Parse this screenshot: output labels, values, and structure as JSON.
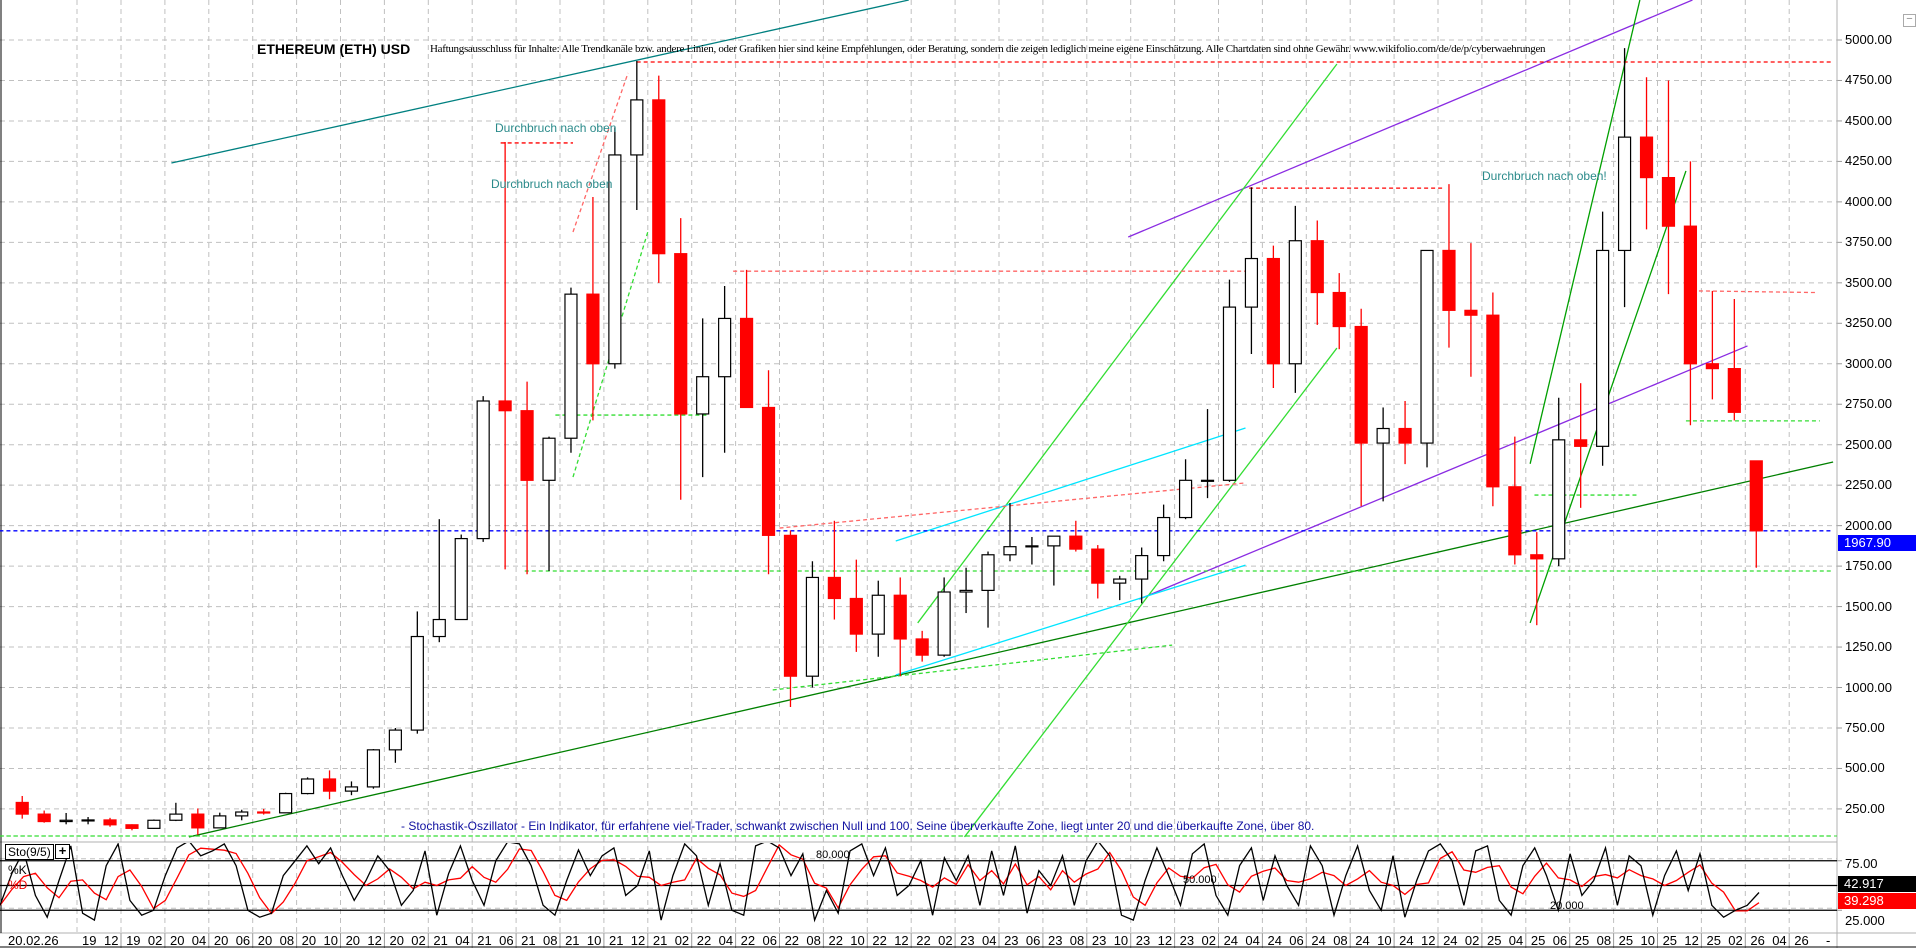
{
  "header": {
    "title": "ETHEREUM (ETH) USD",
    "disclaimer": "Haftungsausschluss für Inhalte: Alle Trendkanäle bzw. andere Linien, oder Grafiken hier sind keine Empfehlungen, oder Beratung, sondern die zeigen lediglich meine eigene Einschätzung. Alle Chartdaten sind ohne Gewähr.  www.wikifolio.com/de/de/p/cyberwaehrungen"
  },
  "annotations_text": {
    "breakout_1": "Durchbruch nach oben",
    "breakout_2": "Durchbruch nach oben",
    "breakout_3": "Durchbruch nach oben!",
    "stochastic_note": "- Stochastik-Oszillator - Ein Indikator, für erfahrene viel-Trader, schwankt zwischen Null und 100. Seine überverkaufte Zone, liegt unter 20 und die überkaufte Zone, über 80."
  },
  "colors": {
    "down_candle": "#ff0000",
    "up_candle": "#000000",
    "last_price_box": "#0000ff",
    "k_line": "#000000",
    "d_line": "#ff0000",
    "grid": "#c0c0c0"
  },
  "chart_data": [
    {
      "type": "candlestick",
      "title": "ETHEREUM (ETH) USD",
      "ylim": [
        0,
        5250
      ],
      "y_ticks": [
        "250.00",
        "500.00",
        "750.00",
        "1000.00",
        "1250.00",
        "1500.00",
        "1750.00",
        "2000.00",
        "2250.00",
        "2500.00",
        "2750.00",
        "3000.00",
        "3250.00",
        "3500.00",
        "3750.00",
        "4000.00",
        "4250.00",
        "4500.00",
        "4750.00",
        "5000.00"
      ],
      "grid": true,
      "last_price": "1967.90",
      "x_start_label": "20.02.26",
      "x_first_label": "19",
      "x_end_label": "-",
      "x_tick_labels": [
        "12 19",
        "02 20",
        "04 20",
        "06 20",
        "08 20",
        "10 20",
        "12 20",
        "02 21",
        "04 21",
        "06 21",
        "08 21",
        "10 21",
        "12 21",
        "02 22",
        "04 22",
        "06 22",
        "08 22",
        "10 22",
        "12 22",
        "02 23",
        "04 23",
        "06 23",
        "08 23",
        "10 23",
        "12 23",
        "02 24",
        "04 24",
        "06 24",
        "08 24",
        "10 24",
        "12 24",
        "02 25",
        "04 25",
        "06 25",
        "08 25",
        "10 25",
        "12 25",
        "02 26",
        "04 26"
      ],
      "ohlc_columns": [
        "month",
        "open",
        "high",
        "low",
        "close"
      ],
      "ohlc": [
        [
          "2019-07",
          290,
          330,
          190,
          218
        ],
        [
          "2019-08",
          218,
          240,
          165,
          172
        ],
        [
          "2019-09",
          172,
          225,
          155,
          180
        ],
        [
          "2019-10",
          180,
          200,
          155,
          182
        ],
        [
          "2019-11",
          182,
          195,
          140,
          152
        ],
        [
          "2019-12",
          152,
          155,
          118,
          130
        ],
        [
          "2020-01",
          130,
          185,
          127,
          180
        ],
        [
          "2020-02",
          180,
          288,
          175,
          218
        ],
        [
          "2020-03",
          218,
          253,
          90,
          133
        ],
        [
          "2020-04",
          133,
          227,
          130,
          207
        ],
        [
          "2020-05",
          207,
          245,
          180,
          231
        ],
        [
          "2020-06",
          231,
          250,
          215,
          226
        ],
        [
          "2020-07",
          226,
          350,
          225,
          345
        ],
        [
          "2020-08",
          345,
          445,
          340,
          435
        ],
        [
          "2020-09",
          435,
          488,
          310,
          360
        ],
        [
          "2020-10",
          360,
          420,
          335,
          386
        ],
        [
          "2020-11",
          386,
          620,
          375,
          615
        ],
        [
          "2020-12",
          615,
          750,
          535,
          737
        ],
        [
          "2021-01",
          737,
          1470,
          715,
          1315
        ],
        [
          "2021-02",
          1315,
          2040,
          1280,
          1420
        ],
        [
          "2021-03",
          1420,
          1945,
          1450,
          1920
        ],
        [
          "2021-04",
          1920,
          2800,
          1900,
          2770
        ],
        [
          "2021-05",
          2770,
          4370,
          1730,
          2710
        ],
        [
          "2021-06",
          2710,
          2890,
          1700,
          2280
        ],
        [
          "2021-07",
          2280,
          2550,
          1720,
          2540
        ],
        [
          "2021-08",
          2540,
          3470,
          2450,
          3430
        ],
        [
          "2021-09",
          3430,
          4030,
          2650,
          3000
        ],
        [
          "2021-10",
          3000,
          4460,
          2970,
          4290
        ],
        [
          "2021-11",
          4290,
          4870,
          3950,
          4630
        ],
        [
          "2021-12",
          4630,
          4780,
          3500,
          3680
        ],
        [
          "2022-01",
          3680,
          3900,
          2160,
          2690
        ],
        [
          "2022-02",
          2690,
          3280,
          2300,
          2920
        ],
        [
          "2022-03",
          2920,
          3480,
          2450,
          3280
        ],
        [
          "2022-04",
          3280,
          3580,
          2780,
          2730
        ],
        [
          "2022-05",
          2730,
          2960,
          1700,
          1940
        ],
        [
          "2022-06",
          1940,
          1970,
          880,
          1070
        ],
        [
          "2022-07",
          1070,
          1780,
          1000,
          1680
        ],
        [
          "2022-08",
          1680,
          2030,
          1420,
          1550
        ],
        [
          "2022-09",
          1550,
          1790,
          1220,
          1330
        ],
        [
          "2022-10",
          1330,
          1660,
          1190,
          1570
        ],
        [
          "2022-11",
          1570,
          1680,
          1070,
          1300
        ],
        [
          "2022-12",
          1300,
          1350,
          1160,
          1200
        ],
        [
          "2023-01",
          1200,
          1680,
          1190,
          1590
        ],
        [
          "2023-02",
          1590,
          1740,
          1460,
          1600
        ],
        [
          "2023-03",
          1600,
          1840,
          1370,
          1820
        ],
        [
          "2023-04",
          1820,
          2140,
          1780,
          1870
        ],
        [
          "2023-05",
          1870,
          1930,
          1760,
          1875
        ],
        [
          "2023-06",
          1875,
          1930,
          1630,
          1935
        ],
        [
          "2023-07",
          1935,
          2030,
          1840,
          1855
        ],
        [
          "2023-08",
          1855,
          1880,
          1550,
          1645
        ],
        [
          "2023-09",
          1645,
          1690,
          1540,
          1670
        ],
        [
          "2023-10",
          1670,
          1865,
          1520,
          1815
        ],
        [
          "2023-11",
          1815,
          2130,
          1780,
          2050
        ],
        [
          "2023-12",
          2050,
          2410,
          2040,
          2280
        ],
        [
          "2024-01",
          2280,
          2720,
          2170,
          2280
        ],
        [
          "2024-02",
          2280,
          3520,
          2270,
          3350
        ],
        [
          "2024-03",
          3350,
          4090,
          3060,
          3650
        ],
        [
          "2024-04",
          3650,
          3730,
          2850,
          3000
        ],
        [
          "2024-05",
          3000,
          3975,
          2820,
          3760
        ],
        [
          "2024-06",
          3760,
          3885,
          3240,
          3440
        ],
        [
          "2024-07",
          3440,
          3560,
          3090,
          3230
        ],
        [
          "2024-08",
          3230,
          3340,
          2120,
          2510
        ],
        [
          "2024-09",
          2510,
          2730,
          2150,
          2600
        ],
        [
          "2024-10",
          2600,
          2770,
          2380,
          2510
        ],
        [
          "2024-11",
          2510,
          3680,
          2360,
          3700
        ],
        [
          "2024-12",
          3700,
          4110,
          3100,
          3330
        ],
        [
          "2025-01",
          3330,
          3745,
          2920,
          3300
        ],
        [
          "2025-02",
          3300,
          3440,
          2120,
          2240
        ],
        [
          "2025-03",
          2240,
          2550,
          1760,
          1820
        ],
        [
          "2025-04",
          1820,
          1960,
          1385,
          1795
        ],
        [
          "2025-05",
          1795,
          2790,
          1750,
          2530
        ],
        [
          "2025-06",
          2530,
          2880,
          2110,
          2490
        ],
        [
          "2025-07",
          2490,
          3940,
          2370,
          3700
        ],
        [
          "2025-08",
          3700,
          4950,
          3350,
          4400
        ],
        [
          "2025-09",
          4400,
          4770,
          3830,
          4150
        ],
        [
          "2025-10",
          4150,
          4750,
          3430,
          3850
        ],
        [
          "2025-11",
          3850,
          4250,
          2620,
          3000
        ],
        [
          "2025-12",
          3000,
          3450,
          2780,
          2970
        ],
        [
          "2026-01",
          2970,
          3400,
          2650,
          2700
        ],
        [
          "2026-02",
          2400,
          2400,
          1740,
          1967.9
        ]
      ],
      "lines": [
        {
          "from": [
            "2020-02-10",
            4240
          ],
          "to": [
            "2022-11-28",
            5247
          ],
          "color": "#008080",
          "dash": false
        },
        {
          "from": [
            "2020-03-04",
            77
          ],
          "to": [
            "2026-06-01",
            2393
          ],
          "color": "#008000",
          "dash": false
        },
        {
          "from": [
            "2023-09-28",
            3783
          ],
          "to": [
            "2025-11-19",
            5247
          ],
          "color": "#8a2be2",
          "dash": false
        },
        {
          "from": [
            "2023-10-13",
            1546
          ],
          "to": [
            "2026-02-04",
            3110
          ],
          "color": "#8a2be2",
          "dash": false
        },
        {
          "from": [
            "2022-12-10",
            1399
          ],
          "to": [
            "2024-07-13",
            4852
          ],
          "color": "#33dd33",
          "dash": false
        },
        {
          "from": [
            "2023-02-14",
            77
          ],
          "to": [
            "2024-07-13",
            3097
          ],
          "color": "#33dd33",
          "dash": false
        },
        {
          "from": [
            "2025-04-07",
            2382
          ],
          "to": [
            "2025-09-07",
            5247
          ],
          "color": "#00a000",
          "dash": false
        },
        {
          "from": [
            "2025-04-07",
            1399
          ],
          "to": [
            "2025-11-10",
            4191
          ],
          "color": "#00a000",
          "dash": false
        },
        {
          "from": [
            "2022-11-10",
            1905
          ],
          "to": [
            "2024-03-08",
            2603
          ],
          "color": "#00e5ff",
          "dash": false
        },
        {
          "from": [
            "2022-11-10",
            1077
          ],
          "to": [
            "2024-03-08",
            1756
          ],
          "color": "#00e5ff",
          "dash": false
        },
        {
          "from": [
            "2021-06-13",
            1720
          ],
          "to": [
            "2026-06-01",
            1720
          ],
          "color": "#33dd33",
          "dash": true
        },
        {
          "from": [
            "2021-07-25",
            2683
          ],
          "to": [
            "2022-02-25",
            2683
          ],
          "color": "#33dd33",
          "dash": true
        },
        {
          "from": [
            "2022-05-22",
            985
          ],
          "to": [
            "2023-11-28",
            1262
          ],
          "color": "#33dd33",
          "dash": true
        },
        {
          "from": [
            "2025-04-13",
            2189
          ],
          "to": [
            "2025-09-04",
            2189
          ],
          "color": "#33dd33",
          "dash": true
        },
        {
          "from": [
            "2025-11-10",
            2647
          ],
          "to": [
            "2026-05-13",
            2647
          ],
          "color": "#33dd33",
          "dash": true
        },
        {
          "from": [
            "2021-08-19",
            2300
          ],
          "to": [
            "2021-12-01",
            3814
          ],
          "color": "#33dd33",
          "dash": true
        },
        {
          "from": [
            "2019-06-15",
            83
          ],
          "to": [
            "2026-06-01",
            83
          ],
          "color": "#33dd33",
          "dash": true
        },
        {
          "from": [
            "2021-11-16",
            4864
          ],
          "to": [
            "2026-06-01",
            4864
          ],
          "color": "#ff0000",
          "dash": true
        },
        {
          "from": [
            "2021-05-10",
            4364
          ],
          "to": [
            "2021-08-19",
            4364
          ],
          "color": "#ff0000",
          "dash": true
        },
        {
          "from": [
            "2022-03-28",
            3572
          ],
          "to": [
            "2024-03-08",
            3572
          ],
          "color": "#ff6666",
          "dash": true
        },
        {
          "from": [
            "2024-03-13",
            4085
          ],
          "to": [
            "2024-12-07",
            4085
          ],
          "color": "#ff0000",
          "dash": true
        },
        {
          "from": [
            "2025-11-28",
            3450
          ],
          "to": [
            "2026-05-07",
            3440
          ],
          "color": "#ff6666",
          "dash": true
        },
        {
          "from": [
            "2022-06-01",
            1985
          ],
          "to": [
            "2024-03-08",
            2264
          ],
          "color": "#ff6666",
          "dash": true
        },
        {
          "from": [
            "2021-08-19",
            3814
          ],
          "to": [
            "2021-11-04",
            4796
          ],
          "color": "#ff6666",
          "dash": true
        },
        {
          "from": [
            "2019-06-15",
            1967.9
          ],
          "to": [
            "2026-06-01",
            1967.9
          ],
          "color": "#0000ff",
          "dash": true
        }
      ]
    },
    {
      "type": "line",
      "indicator": "Sto(9/5)",
      "series": [
        {
          "name": "%K",
          "color": "#000000"
        },
        {
          "name": "%D",
          "color": "#ff0000"
        }
      ],
      "ylim": [
        0,
        100
      ],
      "levels": [
        {
          "value": 80,
          "label": "80.000"
        },
        {
          "value": 50,
          "label": "50.000"
        },
        {
          "value": 20,
          "label": "20.000"
        }
      ],
      "y_ticks": [
        "75.00",
        "25.000"
      ],
      "last_k": "42.917",
      "last_d": "39.298",
      "k_values": [
        30,
        62,
        85,
        40,
        18,
        55,
        90,
        22,
        15,
        70,
        92,
        35,
        20,
        25,
        60,
        88,
        95,
        80,
        85,
        92,
        70,
        25,
        18,
        22,
        60,
        75,
        90,
        72,
        88,
        60,
        35,
        55,
        80,
        65,
        30,
        45,
        85,
        20,
        62,
        90,
        55,
        30,
        75,
        94,
        92,
        70,
        30,
        20,
        55,
        86,
        60,
        80,
        88,
        40,
        50,
        85,
        15,
        60,
        92,
        80,
        30,
        72,
        25,
        20,
        90,
        95,
        88,
        60,
        82,
        15,
        45,
        22,
        85,
        92,
        60,
        88,
        40,
        50,
        75,
        20,
        78,
        55,
        80,
        30,
        85,
        40,
        90,
        22,
        65,
        50,
        80,
        30,
        75,
        95,
        80,
        20,
        15,
        55,
        88,
        60,
        30,
        82,
        92,
        40,
        20,
        70,
        88,
        35,
        80,
        50,
        30,
        90,
        70,
        20,
        60,
        90,
        45,
        25,
        80,
        18,
        55,
        85,
        92,
        75,
        30,
        85,
        90,
        35,
        20,
        70,
        88,
        60,
        25,
        82,
        40,
        55,
        88,
        30,
        80,
        70,
        20,
        60,
        85,
        45,
        82,
        30,
        18,
        25,
        30,
        42.917
      ]
    }
  ]
}
